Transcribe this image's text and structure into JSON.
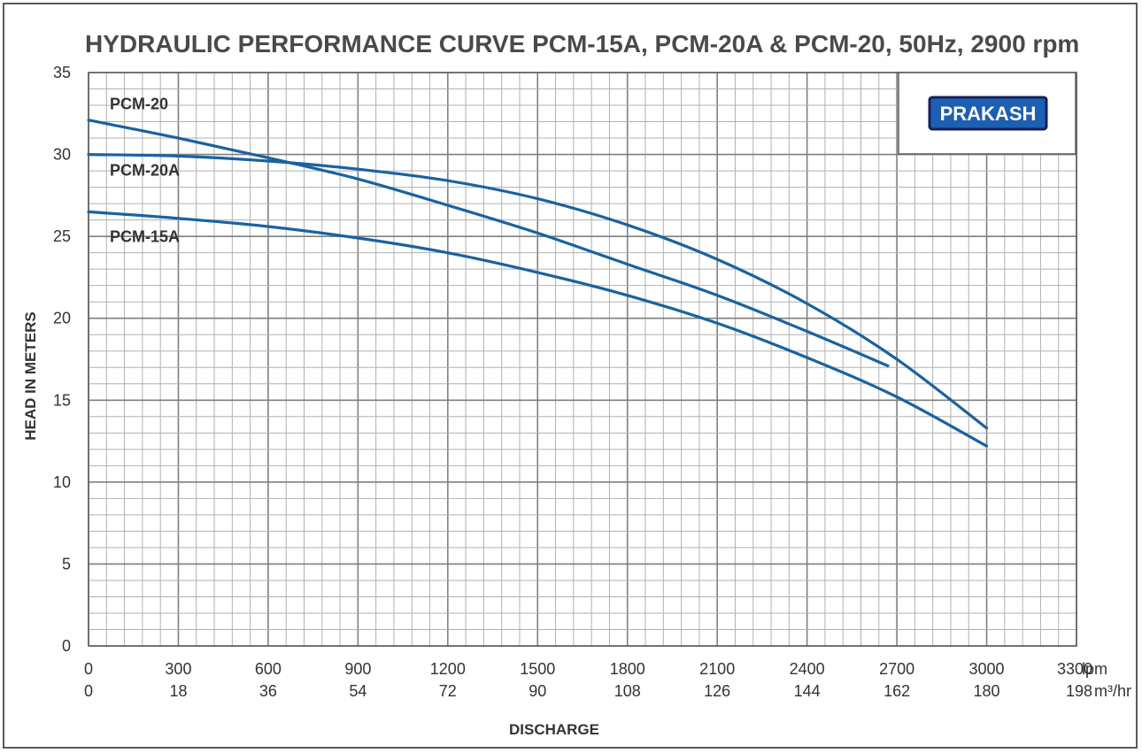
{
  "chart_data": {
    "type": "line",
    "title": "HYDRAULIC PERFORMANCE CURVE PCM-15A, PCM-20A & PCM-20, 50Hz, 2900 rpm",
    "xlabel": "DISCHARGE",
    "ylabel": "HEAD IN METERS",
    "xlim": [
      0,
      3300
    ],
    "ylim": [
      0,
      35
    ],
    "x_ticks_lpm": [
      "0",
      "300",
      "600",
      "900",
      "1200",
      "1500",
      "1800",
      "2100",
      "2400",
      "2700",
      "3000",
      "3300"
    ],
    "x_unit_lpm": "lpm",
    "x_ticks_m3hr": [
      "0",
      "18",
      "36",
      "54",
      "72",
      "90",
      "108",
      "126",
      "144",
      "162",
      "180",
      "198"
    ],
    "x_unit_m3hr": "m³/hr",
    "y_ticks": [
      "0",
      "5",
      "10",
      "15",
      "20",
      "25",
      "30",
      "35"
    ],
    "grid": true,
    "line_color": "#1a62a0",
    "series": [
      {
        "name": "PCM-20",
        "x": [
          0,
          300,
          600,
          900,
          1200,
          1500,
          1800,
          2100,
          2400,
          2670
        ],
        "y": [
          32.1,
          31.0,
          29.8,
          28.5,
          26.9,
          25.2,
          23.3,
          21.4,
          19.2,
          17.1
        ]
      },
      {
        "name": "PCM-20A",
        "x": [
          0,
          300,
          600,
          900,
          1200,
          1500,
          1800,
          2100,
          2400,
          2700,
          3000
        ],
        "y": [
          30.0,
          29.9,
          29.6,
          29.1,
          28.4,
          27.3,
          25.7,
          23.6,
          20.9,
          17.5,
          13.3
        ]
      },
      {
        "name": "PCM-15A",
        "x": [
          0,
          300,
          600,
          900,
          1200,
          1500,
          1800,
          2100,
          2400,
          2700,
          3000
        ],
        "y": [
          26.5,
          26.1,
          25.6,
          24.9,
          24.0,
          22.8,
          21.4,
          19.7,
          17.6,
          15.2,
          12.2
        ]
      }
    ],
    "legend": {
      "placement": "inline-left"
    }
  },
  "logo": {
    "text": "PRAKASH",
    "fill": "#1d5fb2",
    "border": "#16205a"
  }
}
